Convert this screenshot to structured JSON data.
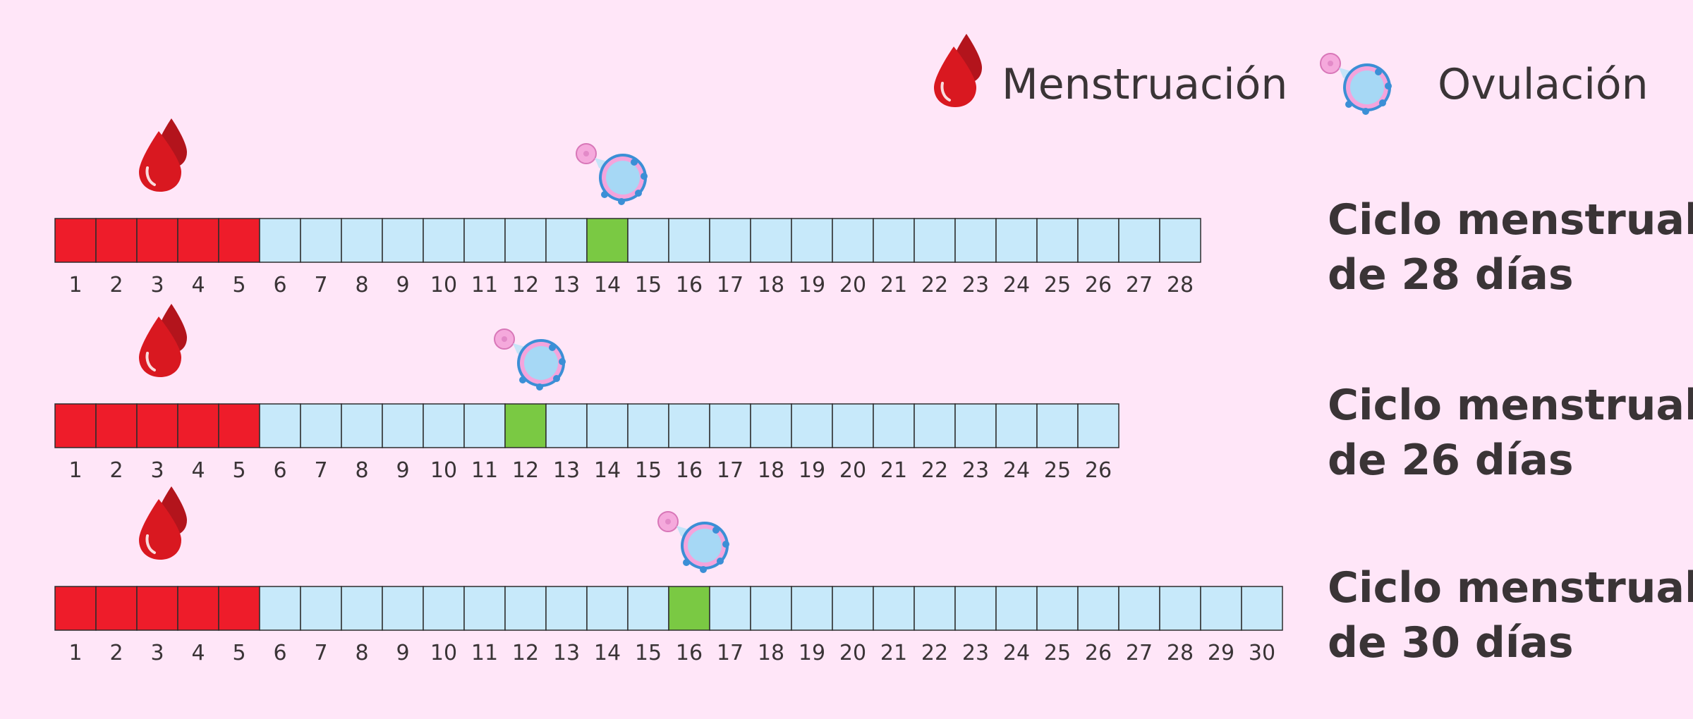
{
  "legend": {
    "menstruation_label": "Menstruación",
    "ovulation_label": "Ovulación"
  },
  "colors": {
    "background": "#ffe6f8",
    "menstruation_day": "#ee1c2a",
    "normal_day": "#c7e9fa",
    "ovulation_day": "#7ac943",
    "blood_drop": "#d4181f",
    "ovum": "#a6d8f5"
  },
  "icons": [
    "blood-drop-icon",
    "ovulation-icon"
  ],
  "cycles": [
    {
      "label_line1": "Ciclo menstrual",
      "label_line2": "de 28 días",
      "days": 28,
      "menstruation_days": [
        1,
        2,
        3,
        4,
        5
      ],
      "ovulation_day": 14
    },
    {
      "label_line1": "Ciclo menstrual",
      "label_line2": "de 26 días",
      "days": 26,
      "menstruation_days": [
        1,
        2,
        3,
        4,
        5
      ],
      "ovulation_day": 12
    },
    {
      "label_line1": "Ciclo menstrual",
      "label_line2": "de 30 días",
      "days": 30,
      "menstruation_days": [
        1,
        2,
        3,
        4,
        5
      ],
      "ovulation_day": 16
    }
  ]
}
